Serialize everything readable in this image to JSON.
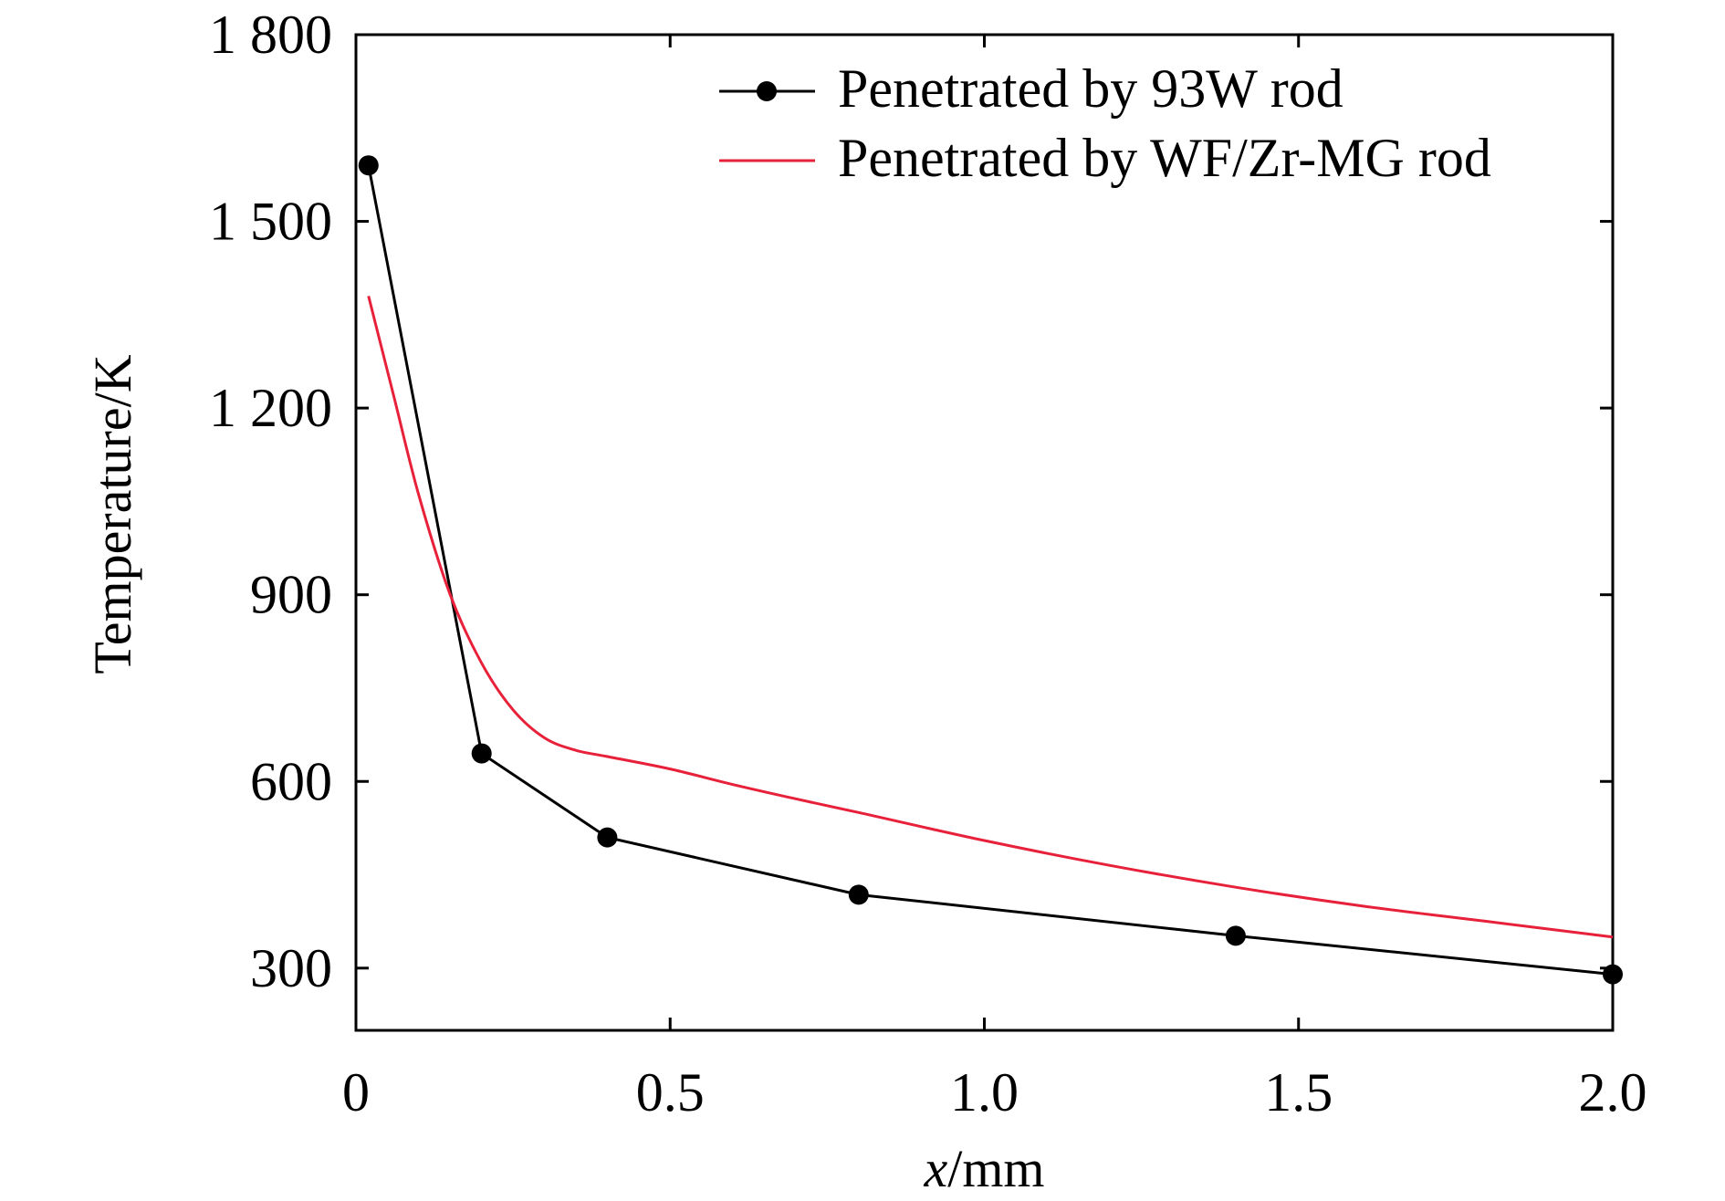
{
  "chart_data": {
    "type": "line",
    "title": "",
    "xlabel_italic": "x",
    "xlabel_rest": "/mm",
    "ylabel": "Temperature/K",
    "xlim": [
      0,
      2.0
    ],
    "ylim": [
      200,
      1800
    ],
    "x_ticks": [
      0,
      0.5,
      1.0,
      1.5,
      2.0
    ],
    "x_tick_labels": [
      "0",
      "0.5",
      "1.0",
      "1.5",
      "2.0"
    ],
    "y_ticks": [
      300,
      600,
      900,
      1200,
      1500,
      1800
    ],
    "y_tick_labels": [
      "300",
      "600",
      "900",
      "1 200",
      "1 500",
      "1 800"
    ],
    "grid": false,
    "legend_position": "top-right",
    "series": [
      {
        "name": "Penetrated by 93W rod",
        "color": "#000000",
        "marker": "circle",
        "x": [
          0.02,
          0.2,
          0.4,
          0.8,
          1.4,
          2.0
        ],
        "y": [
          1590,
          645,
          510,
          418,
          352,
          290
        ]
      },
      {
        "name": "Penetrated by WF/Zr-MG rod",
        "color": "#e8213a",
        "marker": "none",
        "x": [
          0.02,
          0.06,
          0.1,
          0.15,
          0.2,
          0.25,
          0.3,
          0.35,
          0.4,
          0.5,
          0.6,
          0.7,
          0.8,
          1.0,
          1.2,
          1.4,
          1.6,
          1.8,
          2.0
        ],
        "y": [
          1380,
          1220,
          1060,
          900,
          790,
          715,
          670,
          650,
          640,
          620,
          595,
          572,
          550,
          505,
          465,
          430,
          400,
          375,
          350
        ]
      }
    ]
  }
}
